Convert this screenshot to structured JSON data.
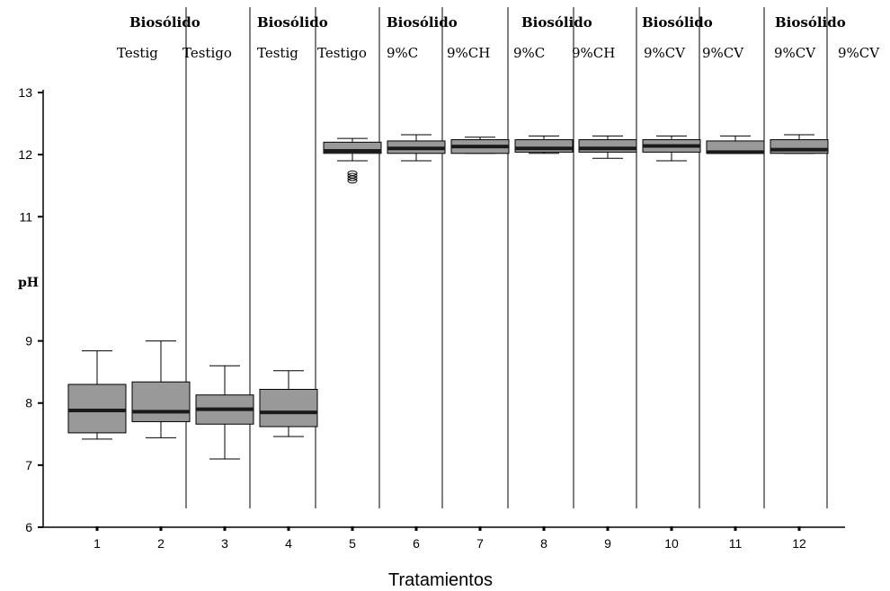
{
  "chart_data": {
    "type": "box",
    "ylabel": "pH",
    "xlabel": "Tratamientos",
    "ylim": [
      6,
      13
    ],
    "y_ticks": [
      "6",
      "7",
      "8",
      "9",
      "11",
      "12",
      "13"
    ],
    "categories": [
      "1",
      "2",
      "3",
      "4",
      "5",
      "6",
      "7",
      "8",
      "9",
      "10",
      "11",
      "12"
    ],
    "group_labels": [
      "Biosólido",
      "Biosólido",
      "Biosólido",
      "Biosólido",
      "Biosólido",
      "Biosólido"
    ],
    "sub_labels": [
      "Testig",
      "Testigo",
      "Testig",
      "Testigo",
      "9%C",
      "9%CH",
      "9%C",
      "9%CH",
      "9%CV",
      "9%CV",
      "9%CV",
      "9%CV"
    ],
    "boxes": [
      {
        "min": 7.42,
        "q1": 7.52,
        "median": 7.88,
        "q3": 8.3,
        "max": 8.84
      },
      {
        "min": 7.44,
        "q1": 7.7,
        "median": 7.86,
        "q3": 8.34,
        "max": 9.0
      },
      {
        "min": 7.1,
        "q1": 7.66,
        "median": 7.9,
        "q3": 8.13,
        "max": 8.6
      },
      {
        "min": 7.46,
        "q1": 7.62,
        "median": 7.85,
        "q3": 8.22,
        "max": 8.52
      },
      {
        "min": 11.9,
        "q1": 12.02,
        "median": 12.06,
        "q3": 12.2,
        "max": 12.26,
        "outliers": [
          11.58,
          11.62,
          11.66,
          11.7
        ]
      },
      {
        "min": 11.9,
        "q1": 12.02,
        "median": 12.1,
        "q3": 12.22,
        "max": 12.32
      },
      {
        "min": 12.02,
        "q1": 12.02,
        "median": 12.13,
        "q3": 12.24,
        "max": 12.28
      },
      {
        "min": 12.02,
        "q1": 12.04,
        "median": 12.1,
        "q3": 12.24,
        "max": 12.3
      },
      {
        "min": 11.94,
        "q1": 12.04,
        "median": 12.1,
        "q3": 12.24,
        "max": 12.3
      },
      {
        "min": 11.9,
        "q1": 12.04,
        "median": 12.14,
        "q3": 12.24,
        "max": 12.3
      },
      {
        "min": 12.02,
        "q1": 12.02,
        "median": 12.04,
        "q3": 12.22,
        "max": 12.3
      },
      {
        "min": 12.02,
        "q1": 12.02,
        "median": 12.08,
        "q3": 12.24,
        "max": 12.32
      }
    ],
    "colors": {
      "box_fill": "#999999",
      "line": "#000000",
      "median": "#1a1a1a"
    },
    "grid": false
  }
}
